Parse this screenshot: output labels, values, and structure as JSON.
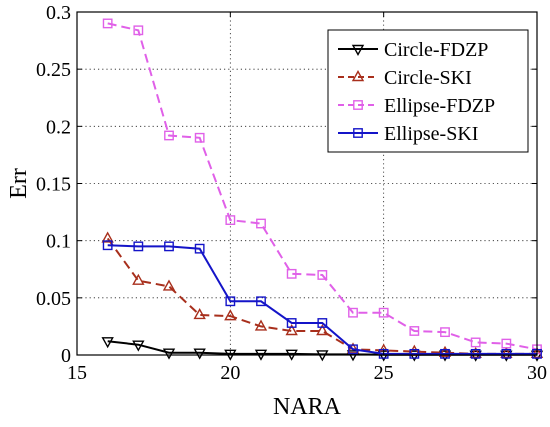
{
  "chart_data": {
    "type": "line",
    "xlabel": "NARA",
    "ylabel": "Err",
    "xlim": [
      15,
      30
    ],
    "ylim": [
      0,
      0.3
    ],
    "xticks": [
      15,
      20,
      25,
      30
    ],
    "yticks": [
      0,
      0.05,
      0.1,
      0.15,
      0.2,
      0.25,
      0.3
    ],
    "xtick_labels": [
      "15",
      "20",
      "25",
      "30"
    ],
    "ytick_labels": [
      "0",
      "0.05",
      "0.1",
      "0.15",
      "0.2",
      "0.25",
      "0.3"
    ],
    "grid": "dotted",
    "legend_position": "top-right",
    "x": [
      16,
      17,
      18,
      19,
      20,
      21,
      22,
      23,
      24,
      25,
      26,
      27,
      28,
      29,
      30
    ],
    "series": [
      {
        "name": "Circle-FDZP",
        "values": [
          0.012,
          0.009,
          0.002,
          0.002,
          0.001,
          0.001,
          0.001,
          0.0005,
          0.0005,
          0.0003,
          0.0003,
          0.0003,
          0.0002,
          0.0002,
          0.0002
        ],
        "color": "#000000",
        "dash": "solid",
        "marker": "triangle-down"
      },
      {
        "name": "Circle-SKI",
        "values": [
          0.102,
          0.065,
          0.06,
          0.035,
          0.034,
          0.025,
          0.021,
          0.021,
          0.005,
          0.004,
          0.003,
          0.002,
          0.001,
          0.001,
          0.001
        ],
        "color": "#a82f1c",
        "dash": "dashed",
        "marker": "triangle-up"
      },
      {
        "name": "Ellipse-FDZP",
        "values": [
          0.29,
          0.284,
          0.192,
          0.19,
          0.118,
          0.115,
          0.071,
          0.07,
          0.037,
          0.037,
          0.021,
          0.02,
          0.011,
          0.01,
          0.005
        ],
        "color": "#e060e8",
        "dash": "dashed",
        "marker": "square"
      },
      {
        "name": "Ellipse-SKI",
        "values": [
          0.096,
          0.095,
          0.095,
          0.093,
          0.047,
          0.047,
          0.028,
          0.028,
          0.005,
          0.001,
          0.001,
          0.001,
          0.001,
          0.001,
          0.001
        ],
        "color": "#1414c8",
        "dash": "solid",
        "marker": "square"
      }
    ]
  }
}
